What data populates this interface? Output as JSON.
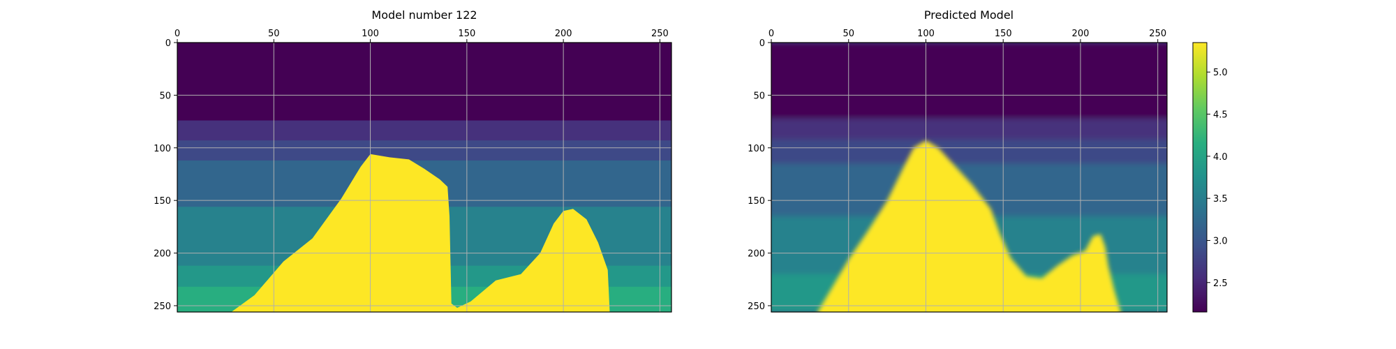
{
  "chart_data": [
    {
      "type": "heatmap",
      "title": "Model number 122",
      "xlim": [
        0,
        256
      ],
      "ylim": [
        256,
        0
      ],
      "x_ticks": [
        0,
        50,
        100,
        150,
        200,
        250
      ],
      "y_ticks": [
        0,
        50,
        100,
        150,
        200,
        250
      ],
      "x_axis_position": "top",
      "y_axis_inverted": true,
      "grid": true,
      "colormap": "viridis",
      "layers": [
        {
          "top": 0,
          "bottom": 74,
          "value": 2.15
        },
        {
          "top": 74,
          "bottom": 93,
          "value": 2.6
        },
        {
          "top": 93,
          "bottom": 112,
          "value": 2.85
        },
        {
          "top": 112,
          "bottom": 156,
          "value": 3.2
        },
        {
          "top": 156,
          "bottom": 212,
          "value": 3.55
        },
        {
          "top": 212,
          "bottom": 232,
          "value": 3.85
        },
        {
          "top": 232,
          "bottom": 256,
          "value": 4.15
        }
      ],
      "salt_body": {
        "value": 5.35,
        "outline": [
          [
            28,
            256
          ],
          [
            40,
            240
          ],
          [
            55,
            208
          ],
          [
            70,
            186
          ],
          [
            85,
            148
          ],
          [
            95,
            118
          ],
          [
            100,
            106
          ],
          [
            110,
            109
          ],
          [
            120,
            111
          ],
          [
            128,
            120
          ],
          [
            136,
            130
          ],
          [
            140,
            137
          ],
          [
            141,
            165
          ],
          [
            142,
            248
          ],
          [
            145,
            252
          ],
          [
            152,
            246
          ],
          [
            165,
            226
          ],
          [
            178,
            220
          ],
          [
            188,
            200
          ],
          [
            195,
            172
          ],
          [
            200,
            160
          ],
          [
            205,
            158
          ],
          [
            212,
            168
          ],
          [
            218,
            190
          ],
          [
            223,
            216
          ],
          [
            224,
            256
          ]
        ]
      }
    },
    {
      "type": "heatmap",
      "title": "Predicted Model",
      "xlim": [
        0,
        256
      ],
      "ylim": [
        256,
        0
      ],
      "x_ticks": [
        0,
        50,
        100,
        150,
        200,
        250
      ],
      "y_ticks": [
        0,
        50,
        100,
        150,
        200,
        250
      ],
      "x_axis_position": "top",
      "y_axis_inverted": true,
      "grid": true,
      "colormap": "viridis",
      "layers": [
        {
          "top": 0,
          "bottom": 72,
          "value": 2.15
        },
        {
          "top": 72,
          "bottom": 92,
          "value": 2.6
        },
        {
          "top": 92,
          "bottom": 115,
          "value": 2.85
        },
        {
          "top": 115,
          "bottom": 165,
          "value": 3.2
        },
        {
          "top": 165,
          "bottom": 220,
          "value": 3.55
        },
        {
          "top": 220,
          "bottom": 256,
          "value": 3.85
        }
      ],
      "salt_body": {
        "value": 5.35,
        "outline": [
          [
            30,
            256
          ],
          [
            38,
            236
          ],
          [
            50,
            206
          ],
          [
            62,
            180
          ],
          [
            75,
            150
          ],
          [
            85,
            120
          ],
          [
            92,
            100
          ],
          [
            100,
            93
          ],
          [
            108,
            100
          ],
          [
            118,
            116
          ],
          [
            130,
            135
          ],
          [
            142,
            158
          ],
          [
            148,
            182
          ],
          [
            155,
            205
          ],
          [
            165,
            222
          ],
          [
            175,
            224
          ],
          [
            185,
            212
          ],
          [
            195,
            202
          ],
          [
            203,
            198
          ],
          [
            208,
            184
          ],
          [
            213,
            182
          ],
          [
            216,
            194
          ],
          [
            218,
            212
          ],
          [
            222,
            236
          ],
          [
            226,
            256
          ]
        ]
      }
    }
  ],
  "colorbar": {
    "colormap": "viridis",
    "vmin": 2.15,
    "vmax": 5.35,
    "ticks": [
      2.5,
      3.0,
      3.5,
      4.0,
      4.5,
      5.0
    ],
    "tick_labels": [
      "2.5",
      "3.0",
      "3.5",
      "4.0",
      "4.5",
      "5.0"
    ]
  }
}
